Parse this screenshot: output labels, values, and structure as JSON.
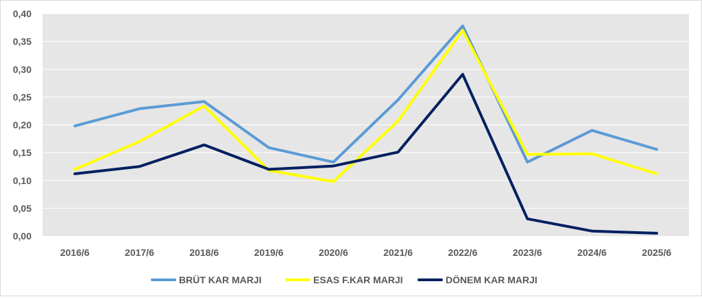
{
  "chart_data": {
    "type": "line",
    "categories": [
      "2016/6",
      "2017/6",
      "2018/6",
      "2019/6",
      "2020/6",
      "2021/6",
      "2022/6",
      "2023/6",
      "2024/6",
      "2025/6"
    ],
    "ylim": [
      0,
      0.4
    ],
    "yticks": [
      "0,00",
      "0,05",
      "0,10",
      "0,15",
      "0,20",
      "0,25",
      "0,30",
      "0,35",
      "0,40"
    ],
    "grid": true,
    "legend": "bottom",
    "series": [
      {
        "name": "BRÜT KAR MARJI",
        "color": "#5b9bd5",
        "values": [
          0.198,
          0.229,
          0.242,
          0.159,
          0.133,
          0.245,
          0.378,
          0.133,
          0.19,
          0.156
        ]
      },
      {
        "name": "ESAS F.KAR MARJI",
        "color": "#ffff00",
        "values": [
          0.12,
          0.17,
          0.234,
          0.118,
          0.098,
          0.207,
          0.37,
          0.147,
          0.148,
          0.112
        ]
      },
      {
        "name": "DÖNEM KAR MARJI",
        "color": "#002060",
        "values": [
          0.112,
          0.125,
          0.164,
          0.12,
          0.126,
          0.151,
          0.291,
          0.031,
          0.009,
          0.005
        ]
      }
    ],
    "plot_background": "#e7e6e6",
    "gridline_color": "#ffffff",
    "axis_text_color": "#595959"
  }
}
